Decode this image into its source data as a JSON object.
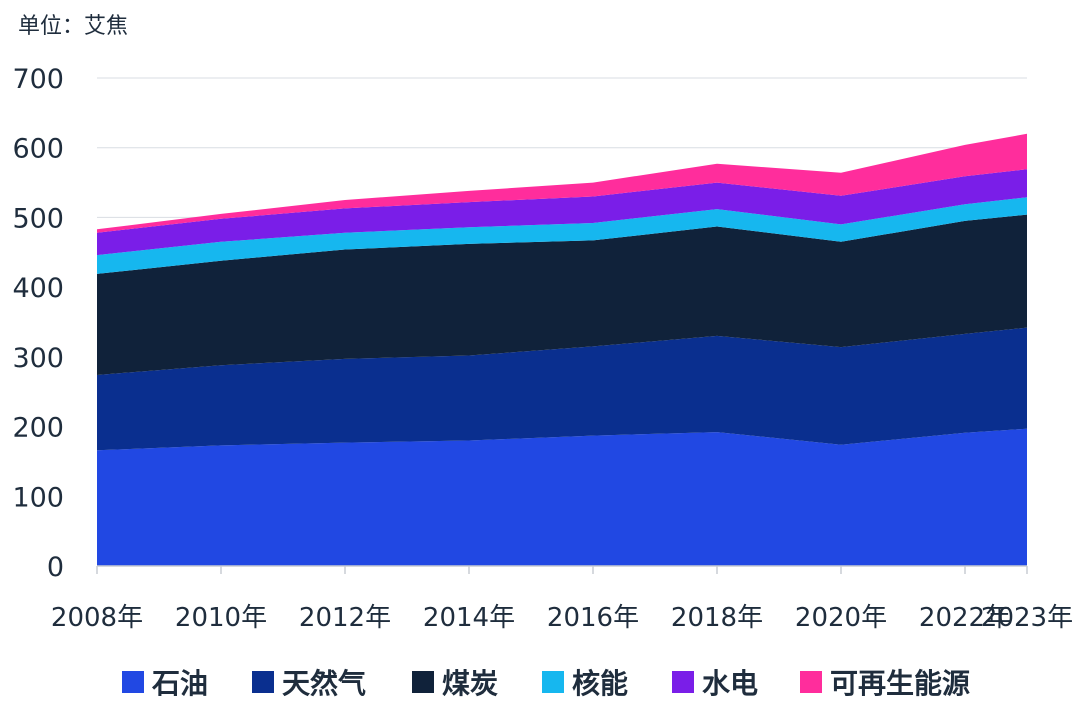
{
  "unit_label": "单位：艾焦",
  "chart_data": {
    "type": "area",
    "stacked": true,
    "ylim": [
      0,
      700
    ],
    "yticks": [
      0,
      100,
      200,
      300,
      400,
      500,
      600,
      700
    ],
    "grid": true,
    "legend_position": "bottom",
    "x": [
      2008,
      2010,
      2012,
      2014,
      2016,
      2018,
      2020,
      2022,
      2023
    ],
    "xtick_labels": [
      "2008年",
      "2010年",
      "2012年",
      "2014年",
      "2016年",
      "2018年",
      "2020年",
      "2022年",
      "2023年"
    ],
    "series": [
      {
        "name": "石油",
        "color": "#2148e3",
        "values": [
          166,
          173,
          177,
          180,
          187,
          192,
          174,
          191,
          197
        ]
      },
      {
        "name": "天然气",
        "color": "#0a2f8f",
        "values": [
          108,
          115,
          120,
          122,
          128,
          138,
          140,
          142,
          145
        ]
      },
      {
        "name": "煤炭",
        "color": "#10223a",
        "values": [
          145,
          150,
          157,
          160,
          152,
          157,
          151,
          162,
          162
        ]
      },
      {
        "name": "核能",
        "color": "#16b7ef",
        "values": [
          27,
          27,
          24,
          24,
          25,
          25,
          25,
          24,
          25
        ]
      },
      {
        "name": "水电",
        "color": "#7a1ee8",
        "values": [
          32,
          33,
          35,
          36,
          38,
          38,
          41,
          40,
          40
        ]
      },
      {
        "name": "可再生能源",
        "color": "#ff2d9c",
        "values": [
          5,
          7,
          12,
          16,
          20,
          27,
          33,
          45,
          51
        ]
      }
    ]
  }
}
